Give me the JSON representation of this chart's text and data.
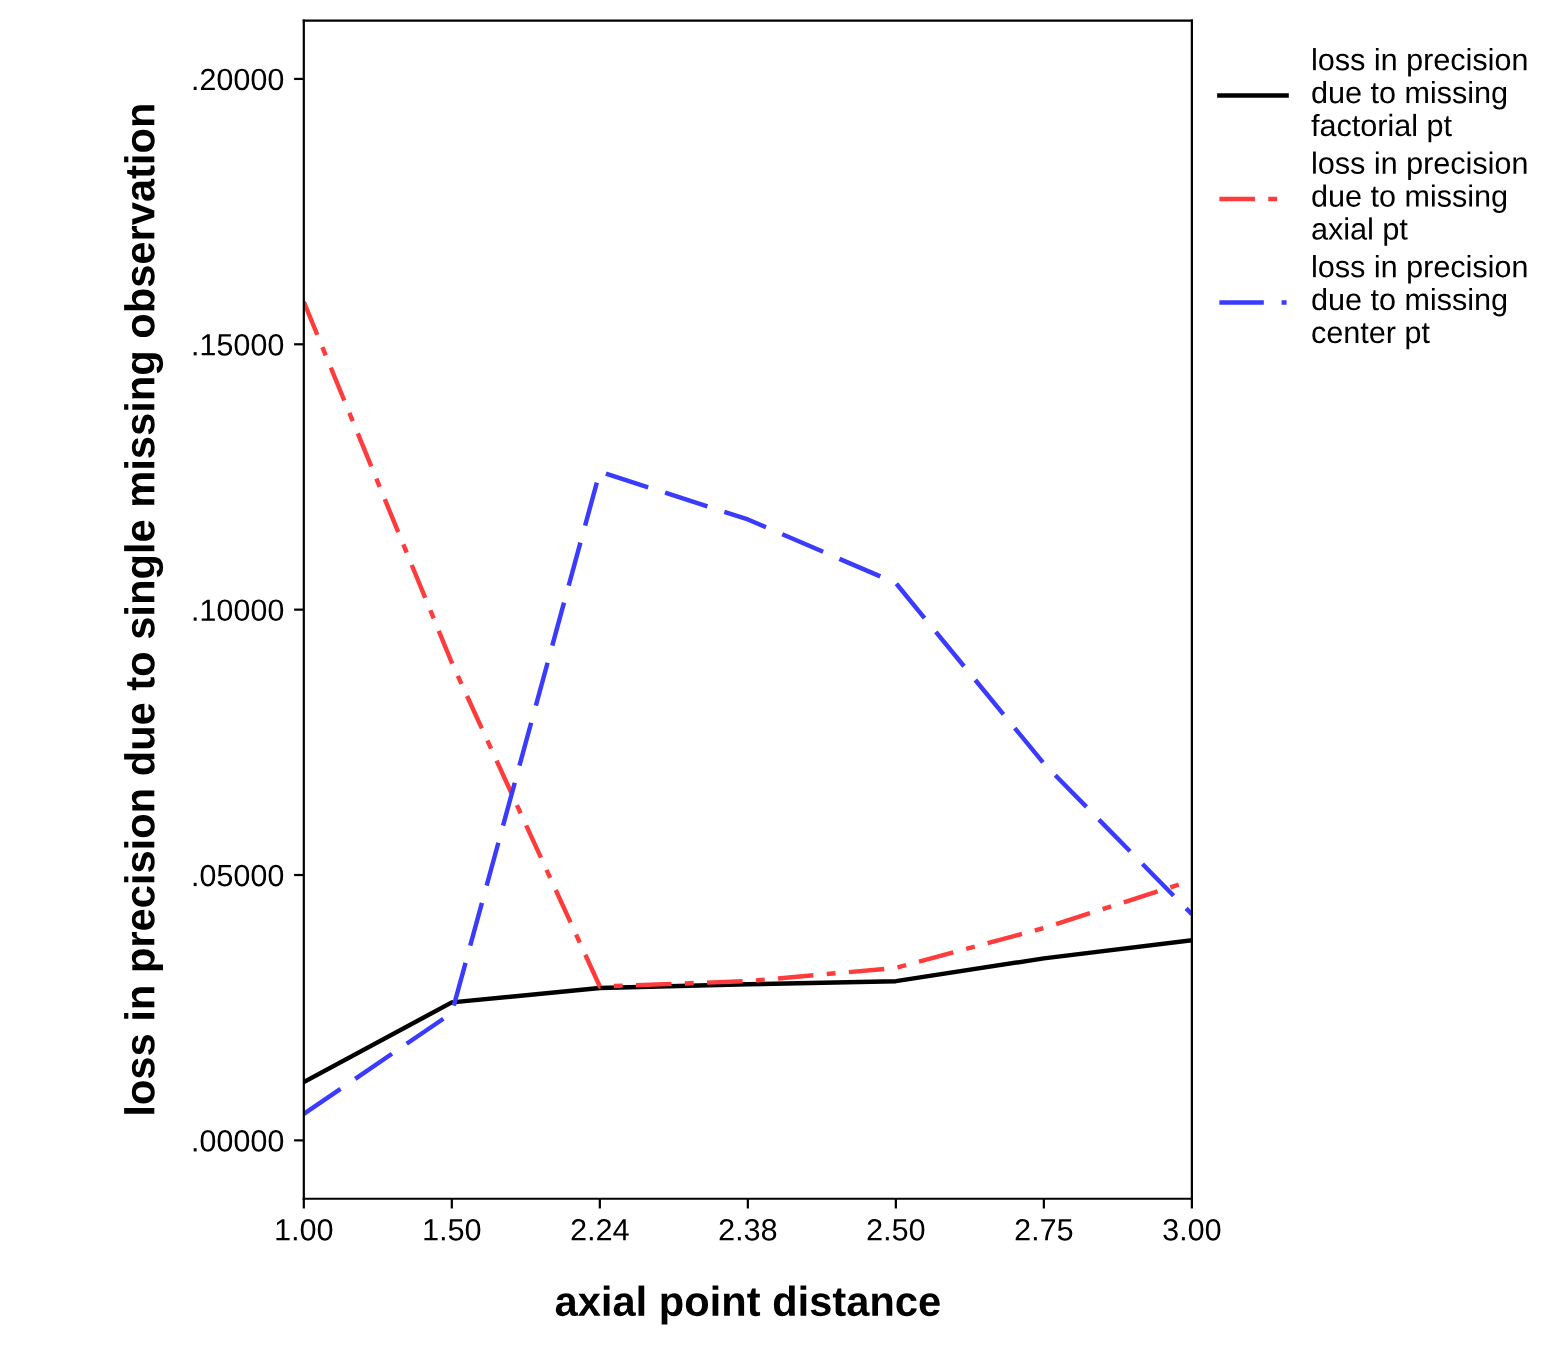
{
  "chart_data": {
    "type": "line",
    "xlabel": "axial point distance",
    "ylabel": "loss in precision due to single missing observation",
    "categories": [
      "1.00",
      "1.50",
      "2.24",
      "2.38",
      "2.50",
      "2.75",
      "3.00"
    ],
    "series": [
      {
        "name": "loss in precision due to missing factorial pt",
        "color": "#000000",
        "line_style": "solid",
        "values": [
          0.011,
          0.026,
          0.0287,
          0.0294,
          0.03,
          0.0343,
          0.0377
        ]
      },
      {
        "name": "loss in precision due to missing axial pt",
        "color": "#ff3b3b",
        "line_style": "dashdot",
        "values": [
          0.158,
          0.09,
          0.029,
          0.03,
          0.0325,
          0.04,
          0.049
        ]
      },
      {
        "name": "loss in precision due to missing center pt",
        "color": "#3b3bff",
        "line_style": "dashed",
        "values": [
          0.005,
          0.024,
          0.126,
          0.117,
          0.105,
          0.071,
          0.0426
        ]
      }
    ],
    "ylim": [
      -0.011,
      0.211
    ],
    "yticks": [
      {
        "value": 0,
        "label": ".00000"
      },
      {
        "value": 0.05,
        "label": ".05000"
      },
      {
        "value": 0.1,
        "label": ".10000"
      },
      {
        "value": 0.15,
        "label": ".15000"
      },
      {
        "value": 0.2,
        "label": ".20000"
      }
    ],
    "grid": false,
    "legend": "right",
    "marker": "none"
  }
}
